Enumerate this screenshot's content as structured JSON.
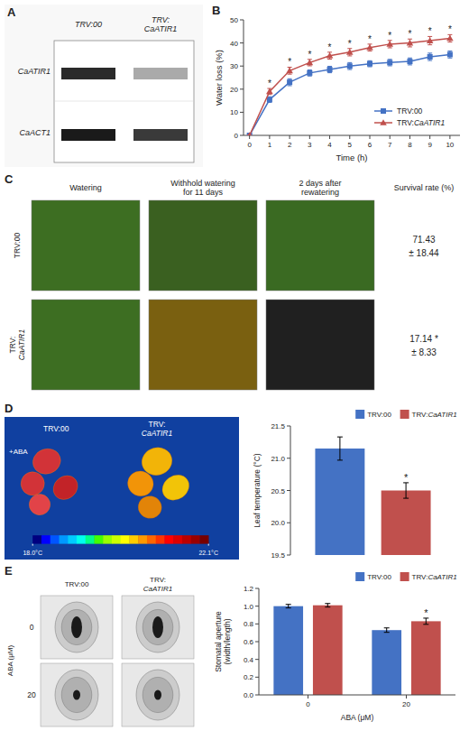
{
  "chart_data": [
    {
      "type": "blot",
      "title": "A",
      "color": "#f8f8f8",
      "categories": [
        "TRV:00",
        "TRV:\nCaATIR1"
      ],
      "rows": [
        "CaATIR1",
        "CaACT1"
      ]
    },
    {
      "type": "line",
      "title": "B",
      "x": [
        0,
        1,
        2,
        3,
        4,
        5,
        6,
        7,
        8,
        9,
        10
      ],
      "series": [
        {
          "name": "TRV:00",
          "color": "#4472C4",
          "marker": "square",
          "values": [
            0,
            15.5,
            23,
            27,
            28.5,
            30,
            31,
            31.5,
            32,
            34,
            35
          ],
          "errors": [
            0,
            1.2,
            1.5,
            1.3,
            1.4,
            1.5,
            1.3,
            1.4,
            1.5,
            1.6,
            1.5
          ]
        },
        {
          "name": "TRV:CaATIR1",
          "color": "#C0504D",
          "marker": "triangle",
          "values": [
            0,
            19,
            28,
            31.5,
            34.5,
            36,
            38,
            39.5,
            40,
            41,
            42
          ],
          "errors": [
            0,
            1.3,
            1.5,
            1.4,
            1.5,
            1.6,
            1.5,
            1.6,
            1.7,
            1.8,
            1.6
          ]
        }
      ],
      "annotations": [
        {
          "text": "*",
          "series": 1,
          "index": 1
        },
        {
          "text": "*",
          "series": 1,
          "index": 2
        },
        {
          "text": "*",
          "series": 1,
          "index": 3
        },
        {
          "text": "*",
          "series": 1,
          "index": 4
        },
        {
          "text": "*",
          "series": 1,
          "index": 5
        },
        {
          "text": "*",
          "series": 1,
          "index": 6
        },
        {
          "text": "*",
          "series": 1,
          "index": 7
        },
        {
          "text": "*",
          "series": 1,
          "index": 8
        },
        {
          "text": "*",
          "series": 1,
          "index": 9
        },
        {
          "text": "*",
          "series": 1,
          "index": 10
        }
      ],
      "xlabel": "Time (h)",
      "ylabel": "Water loss (%)",
      "xlim": [
        -0.3,
        10.5
      ],
      "ylim": [
        0,
        50
      ],
      "xticks": [
        0,
        1,
        2,
        3,
        4,
        5,
        6,
        7,
        8,
        9,
        10
      ],
      "yticks": [
        0,
        10,
        20,
        30,
        40,
        50
      ],
      "legend": "lower right"
    },
    {
      "type": "table",
      "title": "C",
      "columns": [
        "Watering",
        "Withhold watering\nfor 11 days",
        "2 days after\nrewatering",
        "Survival rate (%)"
      ],
      "categories": [
        "TRV:00",
        "TRV:\nCaATIR1"
      ],
      "values": [
        71.43,
        17.14
      ],
      "errors": [
        18.44,
        8.33
      ],
      "value_labels": [
        "71.43",
        "17.14  *"
      ],
      "error_labels": [
        "± 18.44",
        "± 8.33"
      ]
    },
    {
      "type": "thermal",
      "title": "D",
      "color": "#1040a0",
      "categories": [
        "TRV:00",
        "TRV:\nCaATIR1"
      ],
      "annotations": [
        "+ABA"
      ],
      "colors": [
        "#000080",
        "#0000ff",
        "#0055ff",
        "#0099ff",
        "#00ccff",
        "#00ffee",
        "#00ff88",
        "#44ff00",
        "#99ff00",
        "#ccff00",
        "#ffff00",
        "#ffcc00",
        "#ff9900",
        "#ff6600",
        "#ff3300",
        "#ff0000",
        "#dd0000",
        "#bb0000",
        "#990000",
        "#770000"
      ],
      "colorbar_lim": [
        18.0,
        22.1
      ],
      "colorbar_ticks": [
        {
          "value": 18.0,
          "label": "18.0°C"
        },
        {
          "value": 22.1,
          "label": "22.1°C"
        }
      ]
    },
    {
      "type": "bar",
      "categories": [
        null
      ],
      "series": [
        {
          "name": "TRV:00",
          "color": "#4472C4",
          "values": [
            21.15
          ],
          "errors": [
            0.18
          ]
        },
        {
          "name": "TRV:CaATIR1",
          "color": "#C0504D",
          "values": [
            20.5
          ],
          "errors": [
            0.12
          ]
        }
      ],
      "annotations": [
        {
          "text": "*",
          "series": 1,
          "index": 0
        }
      ],
      "ylabel": "Leaf temperature (°C)",
      "ylim": [
        19.5,
        21.5
      ],
      "yticks": [
        19.5,
        {
          "value": 20.0,
          "label": "20.0"
        },
        20.5,
        {
          "value": 21.0,
          "label": "21.0"
        },
        21.5
      ],
      "legend": "upper right",
      "tick_labels": "y"
    },
    {
      "type": "micrograph",
      "title": "E",
      "categories": [
        "TRV:00",
        "TRV:\nCaATIR1"
      ],
      "ylabel": "ABA (μM)",
      "rows": [
        "0",
        "20"
      ]
    },
    {
      "type": "bar",
      "categories": [
        "0",
        "20"
      ],
      "series": [
        {
          "name": "TRV:00",
          "color": "#4472C4",
          "values": [
            1.0,
            0.73
          ],
          "errors": [
            0.02,
            0.025
          ]
        },
        {
          "name": "TRV:CaATIR1",
          "color": "#C0504D",
          "values": [
            1.01,
            0.83
          ],
          "errors": [
            0.02,
            0.035
          ]
        }
      ],
      "annotations": [
        {
          "text": "*",
          "series": 1,
          "index": 1
        }
      ],
      "xlabel": "ABA (μM)",
      "ylabel": "Stomatal aperture\n(width/length)",
      "ylim": [
        0,
        1.2
      ],
      "yticks": [
        {
          "value": 0,
          "label": "0.0"
        },
        0.2,
        0.4,
        0.6,
        0.8,
        {
          "value": 1.0,
          "label": "1.0"
        },
        1.2
      ],
      "legend": "upper right"
    }
  ]
}
